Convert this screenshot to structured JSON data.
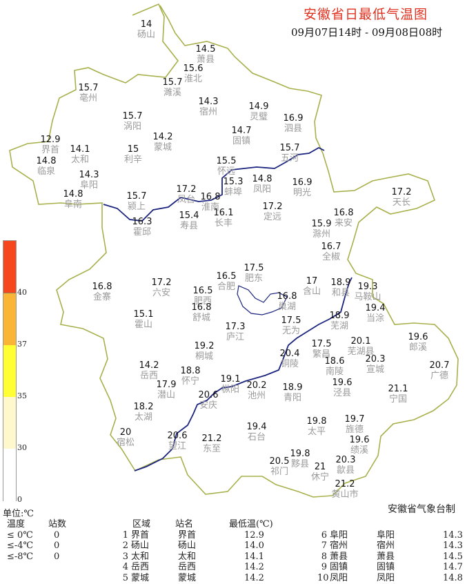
{
  "header": {
    "title": "安徽省日最低气温图",
    "subtitle": "09月07日14时 - 09月08日08时"
  },
  "credit": "安徽省气象台制",
  "legend": {
    "unit": "单位:℃",
    "ticks": [
      "0",
      "30",
      "35",
      "37",
      "40"
    ],
    "colors": [
      "#ffffff",
      "#fff8cc",
      "#ffff33",
      "#fbb536",
      "#f5461e"
    ]
  },
  "colors": {
    "boundary": "#a7b04a",
    "river": "#1a237e",
    "title": "#e0301e"
  },
  "stations": [
    {
      "name": "砀山",
      "value": "14"
    },
    {
      "name": "萧县",
      "value": "14.5"
    },
    {
      "name": "淮北",
      "value": "15.6"
    },
    {
      "name": "濉溪",
      "value": "15.7"
    },
    {
      "name": "亳州",
      "value": "15.7"
    },
    {
      "name": "宿州",
      "value": "14.3"
    },
    {
      "name": "灵璧",
      "value": "14.9"
    },
    {
      "name": "泗县",
      "value": "16.9"
    },
    {
      "name": "涡阳",
      "value": "15.7"
    },
    {
      "name": "固镇",
      "value": "14.7"
    },
    {
      "name": "蒙城",
      "value": "14.2"
    },
    {
      "name": "界首",
      "value": "12.9"
    },
    {
      "name": "太和",
      "value": "14.1"
    },
    {
      "name": "利辛",
      "value": "15"
    },
    {
      "name": "五河",
      "value": "15.7"
    },
    {
      "name": "临泉",
      "value": "14.8"
    },
    {
      "name": "怀远",
      "value": "15.5"
    },
    {
      "name": "蚌埠",
      "value": "15.3"
    },
    {
      "name": "凤阳",
      "value": "14.8"
    },
    {
      "name": "明光",
      "value": "16.9"
    },
    {
      "name": "阜阳",
      "value": "14.3"
    },
    {
      "name": "阜南",
      "value": "14.8"
    },
    {
      "name": "颍上",
      "value": "15.7"
    },
    {
      "name": "凤台",
      "value": "17.2"
    },
    {
      "name": "淮南",
      "value": "16.8"
    },
    {
      "name": "天长",
      "value": "17.2"
    },
    {
      "name": "霍邱",
      "value": "16.3"
    },
    {
      "name": "寿县",
      "value": "15.4"
    },
    {
      "name": "长丰",
      "value": "16.1"
    },
    {
      "name": "定远",
      "value": "17.2"
    },
    {
      "name": "来安",
      "value": "16.8"
    },
    {
      "name": "滁州",
      "value": "15.9"
    },
    {
      "name": "全椒",
      "value": "16.7"
    },
    {
      "name": "肥东",
      "value": "17.5"
    },
    {
      "name": "合肥",
      "value": "16.5"
    },
    {
      "name": "金寨",
      "value": "16.8"
    },
    {
      "name": "六安",
      "value": "17.2"
    },
    {
      "name": "肥西",
      "value": "16.5"
    },
    {
      "name": "含山",
      "value": "17"
    },
    {
      "name": "和县",
      "value": "18.9"
    },
    {
      "name": "马鞍山",
      "value": "19.3"
    },
    {
      "name": "巢湖",
      "value": "16.8"
    },
    {
      "name": "当涂",
      "value": "19.4"
    },
    {
      "name": "舒城",
      "value": "16.8"
    },
    {
      "name": "霍山",
      "value": "15.1"
    },
    {
      "name": "芜湖",
      "value": "18.9"
    },
    {
      "name": "无为",
      "value": "17.5"
    },
    {
      "name": "庐江",
      "value": "17.3"
    },
    {
      "name": "繁昌",
      "value": "17.5"
    },
    {
      "name": "芜湖县",
      "value": "20.1"
    },
    {
      "name": "桐城",
      "value": "19.2"
    },
    {
      "name": "铜陵",
      "value": "20.4"
    },
    {
      "name": "郎溪",
      "value": "19.6"
    },
    {
      "name": "宣城",
      "value": "20.3"
    },
    {
      "name": "南陵",
      "value": "18.6"
    },
    {
      "name": "广德",
      "value": "20.7"
    },
    {
      "name": "岳西",
      "value": "14.2"
    },
    {
      "name": "怀宁",
      "value": "18.8"
    },
    {
      "name": "潜山",
      "value": "17.9"
    },
    {
      "name": "枞阳",
      "value": "19.1"
    },
    {
      "name": "池州",
      "value": "20.2"
    },
    {
      "name": "安庆",
      "value": "20.6"
    },
    {
      "name": "青阳",
      "value": "18.9"
    },
    {
      "name": "泾县",
      "value": "19.6"
    },
    {
      "name": "宁国",
      "value": "21.1"
    },
    {
      "name": "太湖",
      "value": "18.2"
    },
    {
      "name": "石台",
      "value": "19.4"
    },
    {
      "name": "太平",
      "value": "19.8"
    },
    {
      "name": "旌德",
      "value": "19.7"
    },
    {
      "name": "黟县",
      "value": "19.8"
    },
    {
      "name": "绩溪",
      "value": "19.6"
    },
    {
      "name": "祁门",
      "value": "20.5"
    },
    {
      "name": "宿松",
      "value": "20"
    },
    {
      "name": "望江",
      "value": "20.6"
    },
    {
      "name": "东至",
      "value": "21.2"
    },
    {
      "name": "歙县",
      "value": "20.3"
    },
    {
      "name": "休宁",
      "value": "21"
    },
    {
      "name": "黄山市",
      "value": "21.2"
    }
  ],
  "count_table": {
    "headers": [
      "温度",
      "站数"
    ],
    "rows": [
      [
        "≤ 0℃",
        "0"
      ],
      [
        "≤-4℃",
        "0"
      ],
      [
        "≤-8℃",
        "0"
      ]
    ]
  },
  "rank_table": {
    "headers": [
      "区域",
      "站名",
      "最低温(℃)"
    ],
    "rows": [
      [
        "1",
        "界首",
        "界首",
        "12.9"
      ],
      [
        "2",
        "砀山",
        "砀山",
        "14.0"
      ],
      [
        "3",
        "太和",
        "太和",
        "14.1"
      ],
      [
        "4",
        "岳西",
        "岳西",
        "14.2"
      ],
      [
        "5",
        "蒙城",
        "蒙城",
        "14.2"
      ],
      [
        "6",
        "阜阳",
        "阜阳",
        "14.3"
      ],
      [
        "7",
        "宿州",
        "宿州",
        "14.3"
      ],
      [
        "8",
        "萧县",
        "萧县",
        "14.5"
      ],
      [
        "9",
        "固镇",
        "固镇",
        "14.7"
      ],
      [
        "10",
        "凤阳",
        "凤阳",
        "14.8"
      ]
    ]
  }
}
